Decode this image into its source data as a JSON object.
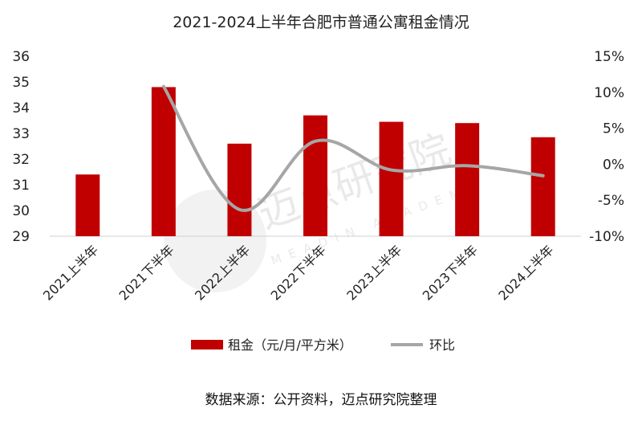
{
  "chart_data": {
    "type": "bar",
    "title": "2021-2024上半年合肥市普通公寓租金情况",
    "categories": [
      "2021上半年",
      "2021下半年",
      "2022上半年",
      "2022下半年",
      "2023上半年",
      "2023下半年",
      "2024上半年"
    ],
    "series": [
      {
        "name": "租金（元/月/平方米）",
        "type": "bar",
        "axis": "left",
        "color": "#c00000",
        "values": [
          31.4,
          34.8,
          32.6,
          33.7,
          33.45,
          33.4,
          32.85
        ]
      },
      {
        "name": "环比",
        "type": "line",
        "axis": "right",
        "color": "#a6a6a6",
        "values": [
          null,
          10.8,
          -6.3,
          3.2,
          -0.8,
          -0.2,
          -1.6
        ]
      }
    ],
    "y_left": {
      "min": 29,
      "max": 36,
      "ticks": [
        "29",
        "30",
        "31",
        "32",
        "33",
        "34",
        "35",
        "36"
      ]
    },
    "y_right": {
      "min": -10,
      "max": 15,
      "ticks": [
        "-10%",
        "-5%",
        "0%",
        "5%",
        "10%",
        "15%"
      ]
    },
    "grid": false,
    "legend_position": "bottom"
  },
  "watermark": {
    "cn": "迈点研究院",
    "en": "MEADIN ACADEMY"
  },
  "source": "数据来源：公开资料，迈点研究院整理"
}
